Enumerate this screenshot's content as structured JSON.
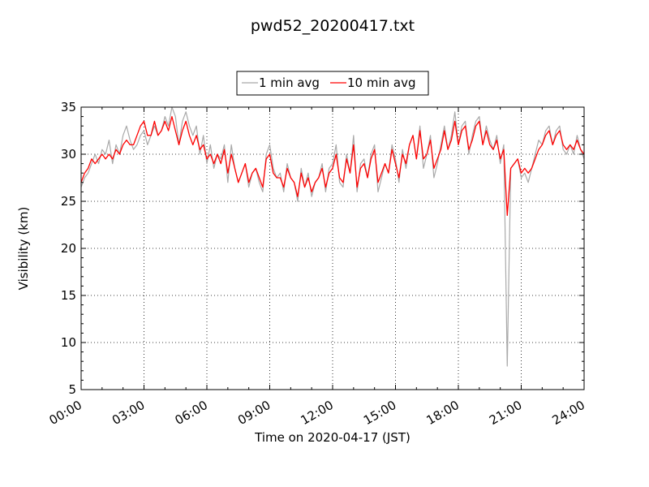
{
  "chart_data": {
    "type": "line",
    "title": "pwd52_20200417.txt",
    "xlabel": "Time on 2020-04-17 (JST)",
    "ylabel": "Visibility (km)",
    "xlim": [
      "00:00",
      "24:00"
    ],
    "ylim": [
      5,
      35
    ],
    "x_ticks": [
      "00:00",
      "03:00",
      "06:00",
      "09:00",
      "12:00",
      "15:00",
      "18:00",
      "21:00",
      "24:00"
    ],
    "y_ticks": [
      5,
      10,
      15,
      20,
      25,
      30,
      35
    ],
    "grid": true,
    "legend_position": "top-center",
    "sampling": "1 point per 10 minutes, 00:00 to 24:00 (145 points); 1 min avg values are approximate envelope readings",
    "series": [
      {
        "name": "1 min avg",
        "color": "#a9a9a9",
        "values": [
          26.5,
          27.5,
          28,
          29,
          30,
          29,
          30.5,
          30,
          31.5,
          29,
          31,
          30,
          32,
          33,
          31.5,
          30.5,
          31,
          32,
          32.5,
          31,
          32,
          33,
          32,
          32.5,
          34,
          33,
          35,
          34,
          31,
          33.5,
          34.5,
          33,
          32,
          33,
          30,
          32,
          29,
          31,
          28.5,
          30,
          29.5,
          31,
          27,
          31,
          28.5,
          27,
          28,
          29,
          26.5,
          28,
          28.5,
          27,
          26,
          30,
          31,
          28.5,
          27.5,
          28,
          26,
          29,
          27.5,
          27,
          25,
          28.5,
          26.5,
          28,
          25.5,
          27,
          27.5,
          29,
          26,
          28.5,
          29,
          31,
          27,
          26.5,
          30,
          28,
          32,
          26,
          29,
          29.5,
          27.5,
          30,
          31,
          26,
          27.5,
          29,
          28,
          31,
          29.5,
          27,
          30.5,
          28.5,
          31,
          32,
          29.5,
          33,
          28.5,
          30,
          32,
          27.5,
          29,
          31,
          33,
          30.5,
          32,
          34.5,
          31,
          33,
          33.5,
          30,
          32,
          33.5,
          34,
          31,
          33,
          31.5,
          30.5,
          32,
          29,
          31,
          7.5,
          28.5,
          29,
          29.5,
          27.5,
          28,
          27,
          28.5,
          30,
          31.5,
          31,
          32.5,
          33,
          31,
          32.5,
          33,
          30.5,
          30,
          31,
          30,
          32,
          30.5,
          29.5
        ]
      },
      {
        "name": "10 min avg",
        "color": "#ff0000",
        "values": [
          27,
          28,
          28.5,
          29.5,
          29,
          29.5,
          30,
          29.5,
          30,
          29.5,
          30.5,
          30,
          31,
          31.5,
          31,
          31,
          32,
          33,
          33.5,
          32,
          32,
          33.5,
          32,
          32.5,
          33.5,
          32.5,
          34,
          32.5,
          31,
          32.5,
          33.5,
          32,
          31,
          32,
          30.5,
          31,
          29.5,
          30,
          29,
          30,
          29,
          30.5,
          28,
          30,
          28.5,
          27,
          28,
          29,
          27,
          28,
          28.5,
          27.5,
          26.5,
          29.5,
          30,
          28,
          27.5,
          27.5,
          26.5,
          28.5,
          27.5,
          27,
          25.5,
          28,
          26.5,
          27.5,
          26,
          27,
          27.5,
          28.5,
          26.5,
          28,
          28.5,
          30,
          27.5,
          27,
          29.5,
          28,
          31,
          26.5,
          28.5,
          29,
          27.5,
          29.5,
          30.5,
          27,
          28,
          29,
          28,
          30.5,
          29,
          27.5,
          30,
          29,
          31,
          32,
          29.5,
          32.5,
          29.5,
          30,
          31.5,
          28.5,
          29.5,
          30.5,
          32.5,
          30.5,
          31.5,
          33.5,
          31,
          32.5,
          33,
          30.5,
          31.5,
          33,
          33.5,
          31,
          32.5,
          31,
          30.5,
          31.5,
          29.5,
          30.5,
          23.5,
          28.5,
          29,
          29.5,
          28,
          28.5,
          28,
          28.5,
          29.5,
          30.5,
          31,
          32,
          32.5,
          31,
          32,
          32.5,
          31,
          30.5,
          31,
          30.5,
          31.5,
          30.5,
          30
        ]
      }
    ]
  }
}
